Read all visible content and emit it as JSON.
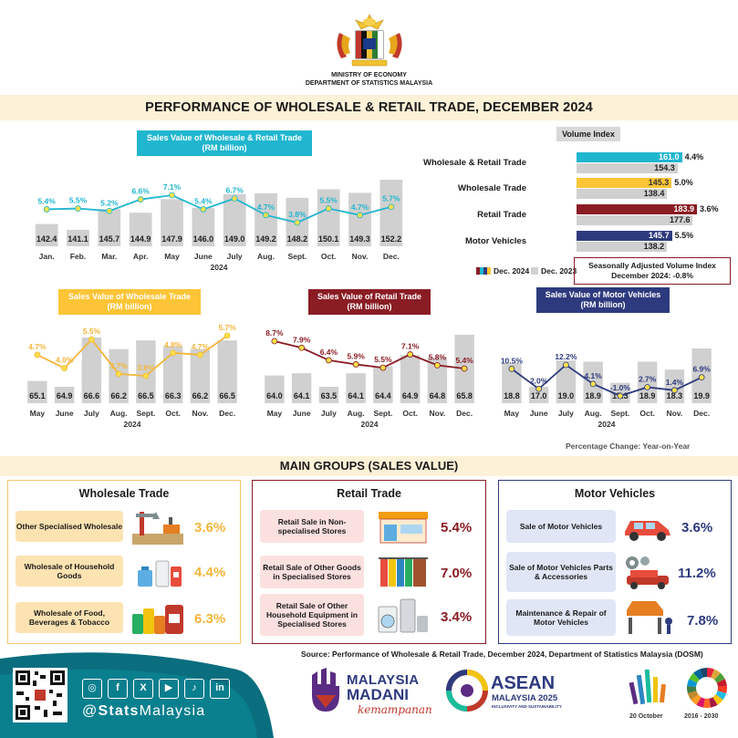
{
  "header": {
    "ministry": "MINISTRY OF ECONOMY",
    "department": "DEPARTMENT OF STATISTICS MALAYSIA",
    "title": "PERFORMANCE OF WHOLESALE & RETAIL TRADE, DECEMBER 2024"
  },
  "colors": {
    "teal": "#21b6cf",
    "yellow": "#fcc436",
    "maroon": "#8a1c24",
    "navy": "#2e3a7e",
    "bar_grey": "#d0d0d0"
  },
  "chart_data": [
    {
      "id": "total",
      "type": "bar",
      "title": "Sales Value of Wholesale & Retail Trade",
      "subtitle": "(RM billion)",
      "categories": [
        "Jan.",
        "Feb.",
        "Mar.",
        "Apr.",
        "May",
        "June",
        "July",
        "Aug.",
        "Sept.",
        "Oct.",
        "Nov.",
        "Dec."
      ],
      "year_label": "2024",
      "values": [
        142.4,
        141.1,
        145.7,
        144.9,
        147.9,
        146.0,
        149.0,
        149.2,
        148.2,
        150.1,
        149.3,
        152.2
      ],
      "values_text": [
        "142.4",
        "141.1",
        "145.7",
        "144.9",
        "147.9",
        "146.0",
        "149.0",
        "149.2",
        "148.2",
        "150.1",
        "149.3",
        "152.2"
      ],
      "pct": [
        5.4,
        5.5,
        5.2,
        6.6,
        7.1,
        5.4,
        6.7,
        4.7,
        3.8,
        5.5,
        4.7,
        5.7
      ],
      "pct_text": [
        "5.4%",
        "5.5%",
        "5.2%",
        "6.6%",
        "7.1%",
        "5.4%",
        "6.7%",
        "4.7%",
        "3.8%",
        "5.5%",
        "4.7%",
        "5.7%"
      ]
    },
    {
      "id": "wholesale",
      "type": "bar",
      "title": "Sales Value of Wholesale Trade",
      "subtitle": "(RM billion)",
      "categories": [
        "May",
        "June",
        "July",
        "Aug.",
        "Sept.",
        "Oct.",
        "Nov.",
        "Dec."
      ],
      "year_label": "2024",
      "values": [
        65.1,
        64.9,
        66.6,
        66.2,
        66.5,
        66.3,
        66.2,
        66.5
      ],
      "values_text": [
        "65.1",
        "64.9",
        "66.6",
        "66.2",
        "66.5",
        "66.3",
        "66.2",
        "66.5"
      ],
      "pct": [
        4.7,
        4.0,
        5.5,
        3.7,
        3.6,
        4.8,
        4.7,
        5.7
      ],
      "pct_text": [
        "4.7%",
        "4.0%",
        "5.5%",
        "3.7%",
        "3.6%",
        "4.8%",
        "4.7%",
        "5.7%"
      ]
    },
    {
      "id": "retail",
      "type": "bar",
      "title": "Sales Value of Retail Trade",
      "subtitle": "(RM billion)",
      "categories": [
        "May",
        "June",
        "July",
        "Aug.",
        "Sept.",
        "Oct.",
        "Nov.",
        "Dec."
      ],
      "year_label": "2024",
      "values": [
        64.0,
        64.1,
        63.5,
        64.1,
        64.4,
        64.9,
        64.8,
        65.8
      ],
      "values_text": [
        "64.0",
        "64.1",
        "63.5",
        "64.1",
        "64.4",
        "64.9",
        "64.8",
        "65.8"
      ],
      "pct": [
        8.7,
        7.9,
        6.4,
        5.9,
        5.5,
        7.1,
        5.8,
        5.4
      ],
      "pct_text": [
        "8.7%",
        "7.9%",
        "6.4%",
        "5.9%",
        "5.5%",
        "7.1%",
        "5.8%",
        "5.4%"
      ]
    },
    {
      "id": "motor",
      "type": "bar",
      "title": "Sales Value of Motor Vehicles",
      "subtitle": "(RM billion)",
      "categories": [
        "May",
        "June",
        "July",
        "Aug.",
        "Sept.",
        "Oct.",
        "Nov.",
        "Dec."
      ],
      "year_label": "2024",
      "values": [
        18.8,
        17.0,
        19.0,
        18.9,
        17.3,
        18.9,
        18.3,
        19.9
      ],
      "values_text": [
        "18.8",
        "17.0",
        "19.0",
        "18.9",
        "17.3",
        "18.9",
        "18.3",
        "19.9"
      ],
      "pct": [
        10.5,
        2.0,
        12.2,
        4.1,
        -1.0,
        2.7,
        1.4,
        6.9
      ],
      "pct_text": [
        "10.5%",
        "2.0%",
        "12.2%",
        "4.1%",
        "-1.0%",
        "2.7%",
        "1.4%",
        "6.9%"
      ]
    },
    {
      "id": "volume_index",
      "type": "bar",
      "title": "Volume Index",
      "categories": [
        "Wholesale & Retail Trade",
        "Wholesale Trade",
        "Retail Trade",
        "Motor Vehicles"
      ],
      "series": [
        {
          "name": "Dec. 2024",
          "values": [
            161.0,
            145.3,
            183.9,
            145.7
          ],
          "values_text": [
            "161.0",
            "145.3",
            "183.9",
            "145.7"
          ]
        },
        {
          "name": "Dec. 2023",
          "values": [
            154.3,
            138.4,
            177.6,
            138.2
          ],
          "values_text": [
            "154.3",
            "138.4",
            "177.6",
            "138.2"
          ]
        }
      ],
      "pct_text": [
        "4.4%",
        "5.0%",
        "3.6%",
        "5.5%"
      ],
      "legend": "bottom"
    }
  ],
  "seasonal": {
    "line1": "Seasonally Adjusted Volume Index",
    "line2": "December 2024: -0.8%"
  },
  "pct_note": "Percentage Change: Year-on-Year",
  "main_groups": {
    "title": "MAIN GROUPS (SALES VALUE)",
    "panels": [
      {
        "title": "Wholesale Trade",
        "items": [
          {
            "label": "Other Specialised Wholesale",
            "pct": "3.6%",
            "icon": "oil-pump-icon"
          },
          {
            "label": "Wholesale of Household Goods",
            "pct": "4.4%",
            "icon": "household-goods-icon"
          },
          {
            "label": "Wholesale of Food, Beverages & Tobacco",
            "pct": "6.3%",
            "icon": "food-cans-icon"
          }
        ]
      },
      {
        "title": "Retail Trade",
        "items": [
          {
            "label": "Retail Sale in Non-specialised Stores",
            "pct": "5.4%",
            "icon": "mini-market-icon"
          },
          {
            "label": "Retail Sale of Other Goods in Specialised Stores",
            "pct": "7.0%",
            "icon": "clothes-rack-icon"
          },
          {
            "label": "Retail Sale of Other Household Equipment in Specialised Stores",
            "pct": "3.4%",
            "icon": "appliances-icon"
          }
        ]
      },
      {
        "title": "Motor Vehicles",
        "items": [
          {
            "label": "Sale of Motor Vehicles",
            "pct": "3.6%",
            "icon": "car-icon"
          },
          {
            "label": "Sale of Motor Vehicles Parts & Accessories",
            "pct": "11.2%",
            "icon": "car-parts-icon"
          },
          {
            "label": "Maintenance & Repair of Motor Vehicles",
            "pct": "7.8%",
            "icon": "car-repair-icon"
          }
        ]
      }
    ]
  },
  "source": "Source: Performance of Wholesale & Retail Trade, December 2024, Department of Statistics Malaysia (DOSM)",
  "footer": {
    "handle_at": "@",
    "handle_bold": "Stats",
    "handle_rest": "Malaysia",
    "socials": [
      "instagram-icon",
      "facebook-icon",
      "x-icon",
      "youtube-icon",
      "tiktok-icon",
      "linkedin-icon"
    ],
    "madani_top": "MALAYSIA",
    "madani_mid": "MADANI",
    "madani_script": "kemampanan",
    "asean_big": "ASEAN",
    "asean_sub": "MALAYSIA 2025",
    "asean_tag": "INCLUSIVITY AND SUSTAINABILITY",
    "date_label": "20 October",
    "sdg_label": "2016 - 2030"
  }
}
